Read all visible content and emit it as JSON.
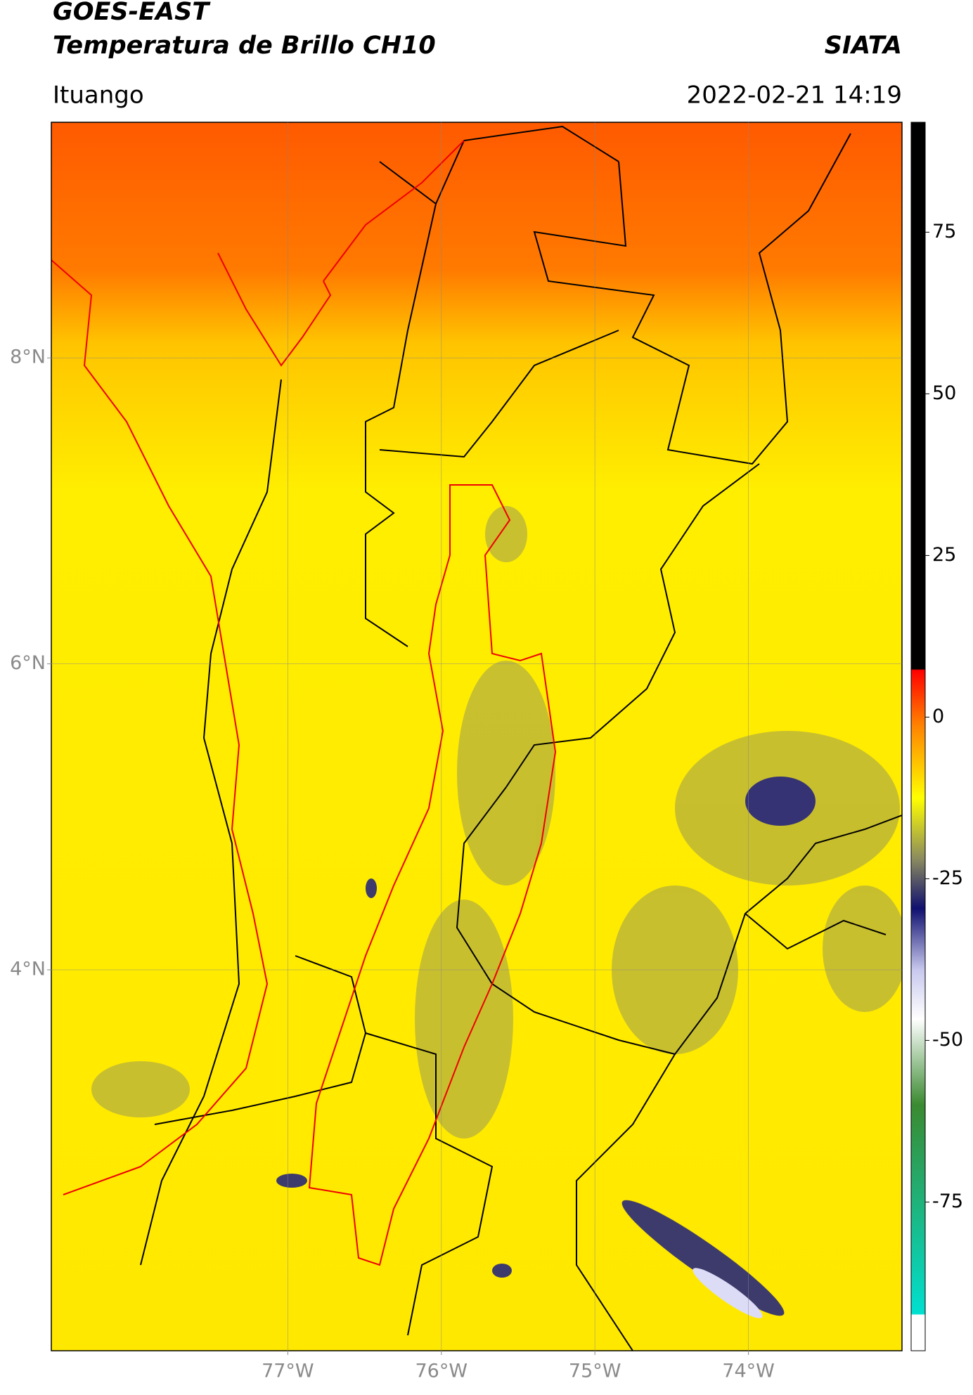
{
  "header": {
    "satellite": "GOES-EAST",
    "product": "Temperatura de Brillo CH10",
    "organization": "SIATA",
    "location": "Ituango",
    "datetime": "2022-02-21 14:19"
  },
  "map": {
    "xlim": [
      -78.54,
      -73.0
    ],
    "ylim": [
      1.51,
      9.54
    ],
    "xticks": [
      {
        "value": -77,
        "label": "77°W"
      },
      {
        "value": -76,
        "label": "76°W"
      },
      {
        "value": -75,
        "label": "75°W"
      },
      {
        "value": -74,
        "label": "74°W"
      }
    ],
    "yticks": [
      {
        "value": 8,
        "label": "8°N"
      },
      {
        "value": 6,
        "label": "6°N"
      },
      {
        "value": 4,
        "label": "4°N"
      }
    ],
    "grid": true
  },
  "colorbar": {
    "lim": [
      -98,
      92
    ],
    "ticks": [
      75,
      50,
      25,
      0,
      -25,
      -50,
      -75
    ]
  }
}
